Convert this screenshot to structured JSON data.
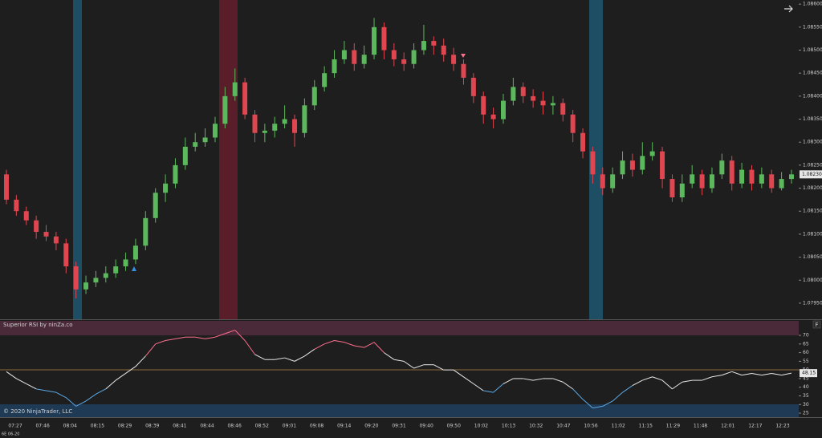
{
  "chart_data": [
    {
      "type": "candlestick",
      "instrument": "6E 06-20",
      "up_color": "#5cb85c",
      "down_color": "#e04650",
      "open": [
        1.0823,
        1.08175,
        1.0815,
        1.0813,
        1.08105,
        1.08095,
        1.0808,
        1.0803,
        1.0798,
        1.07995,
        1.08005,
        1.08015,
        1.0803,
        1.08045,
        1.08075,
        1.08135,
        1.0819,
        1.0821,
        1.0825,
        1.0829,
        1.083,
        1.0831,
        1.0834,
        1.084,
        1.0843,
        1.0836,
        1.0832,
        1.08325,
        1.0834,
        1.0835,
        1.0832,
        1.0838,
        1.0842,
        1.0845,
        1.0848,
        1.085,
        1.0847,
        1.0849,
        1.0855,
        1.085,
        1.0848,
        1.0847,
        1.085,
        1.0852,
        1.0851,
        1.0849,
        1.0847,
        1.0844,
        1.084,
        1.0836,
        1.0835,
        1.0839,
        1.0842,
        1.084,
        1.0839,
        1.0838,
        1.08385,
        1.0836,
        1.0832,
        1.0828,
        1.0823,
        1.082,
        1.0823,
        1.0826,
        1.0824,
        1.0827,
        1.0828,
        1.0822,
        1.0818,
        1.0821,
        1.0823,
        1.082,
        1.0823,
        1.0826,
        1.0821,
        1.0824,
        1.0821,
        1.0823,
        1.082,
        1.0822
      ],
      "high": [
        1.0824,
        1.08185,
        1.0816,
        1.0814,
        1.0812,
        1.08105,
        1.0809,
        1.0804,
        1.0801,
        1.0802,
        1.0803,
        1.08045,
        1.0806,
        1.0809,
        1.0815,
        1.082,
        1.0823,
        1.08265,
        1.0831,
        1.0832,
        1.0833,
        1.08355,
        1.0842,
        1.0846,
        1.0844,
        1.0837,
        1.0834,
        1.08355,
        1.0838,
        1.0836,
        1.08395,
        1.08435,
        1.08465,
        1.085,
        1.0852,
        1.08515,
        1.0851,
        1.0857,
        1.0856,
        1.08515,
        1.08495,
        1.08515,
        1.08555,
        1.0853,
        1.08525,
        1.08505,
        1.0848,
        1.0845,
        1.0841,
        1.08375,
        1.08405,
        1.0844,
        1.0843,
        1.08415,
        1.0841,
        1.084,
        1.08395,
        1.0837,
        1.0833,
        1.0829,
        1.08245,
        1.08245,
        1.0828,
        1.08275,
        1.083,
        1.083,
        1.0829,
        1.0823,
        1.0823,
        1.0825,
        1.0824,
        1.08245,
        1.08275,
        1.0827,
        1.08255,
        1.0825,
        1.08245,
        1.0824,
        1.08235,
        1.0824
      ],
      "low": [
        1.08165,
        1.0814,
        1.0812,
        1.0809,
        1.08085,
        1.08065,
        1.08015,
        1.0796,
        1.0797,
        1.07985,
        1.07995,
        1.08005,
        1.0802,
        1.08035,
        1.08065,
        1.08125,
        1.0817,
        1.082,
        1.0824,
        1.0828,
        1.0829,
        1.083,
        1.0833,
        1.0839,
        1.0835,
        1.083,
        1.083,
        1.0831,
        1.0833,
        1.0829,
        1.0831,
        1.0837,
        1.0841,
        1.0844,
        1.0847,
        1.08455,
        1.0846,
        1.0848,
        1.0848,
        1.08465,
        1.08455,
        1.0846,
        1.0849,
        1.0849,
        1.08475,
        1.08455,
        1.08425,
        1.08385,
        1.0834,
        1.0833,
        1.0834,
        1.0838,
        1.08385,
        1.08375,
        1.0836,
        1.0836,
        1.08345,
        1.083,
        1.08265,
        1.0821,
        1.08185,
        1.0819,
        1.0822,
        1.08225,
        1.0823,
        1.0826,
        1.082,
        1.0817,
        1.0817,
        1.082,
        1.08185,
        1.0819,
        1.0822,
        1.08195,
        1.082,
        1.08195,
        1.082,
        1.0819,
        1.08195,
        1.0821
      ],
      "close": [
        1.08175,
        1.0815,
        1.0813,
        1.08105,
        1.08095,
        1.0808,
        1.0803,
        1.0798,
        1.07995,
        1.08005,
        1.08015,
        1.0803,
        1.08045,
        1.08075,
        1.08135,
        1.0819,
        1.0821,
        1.0825,
        1.0829,
        1.083,
        1.0831,
        1.0834,
        1.084,
        1.0843,
        1.0836,
        1.0832,
        1.08325,
        1.0834,
        1.0835,
        1.0832,
        1.0838,
        1.0842,
        1.0845,
        1.0848,
        1.085,
        1.0847,
        1.0849,
        1.0855,
        1.085,
        1.0848,
        1.0847,
        1.085,
        1.0852,
        1.0851,
        1.0849,
        1.0847,
        1.0844,
        1.084,
        1.0836,
        1.0835,
        1.0839,
        1.0842,
        1.084,
        1.0839,
        1.0838,
        1.08385,
        1.0836,
        1.0832,
        1.0828,
        1.0823,
        1.082,
        1.0823,
        1.0826,
        1.0824,
        1.0827,
        1.0828,
        1.0822,
        1.0818,
        1.0821,
        1.0823,
        1.082,
        1.0823,
        1.0826,
        1.0821,
        1.0824,
        1.0821,
        1.0823,
        1.082,
        1.0822,
        1.0823
      ],
      "ylim": [
        1.07915,
        1.08609
      ],
      "yticks": [
        {
          "value": 1.086,
          "label": "1.08600"
        },
        {
          "value": 1.0855,
          "label": "1.08550"
        },
        {
          "value": 1.085,
          "label": "1.08500"
        },
        {
          "value": 1.0845,
          "label": "1.08450"
        },
        {
          "value": 1.084,
          "label": "1.08400"
        },
        {
          "value": 1.0835,
          "label": "1.08350"
        },
        {
          "value": 1.083,
          "label": "1.08300"
        },
        {
          "value": 1.0825,
          "label": "1.08250"
        },
        {
          "value": 1.082,
          "label": "1.08200"
        },
        {
          "value": 1.0815,
          "label": "1.08150"
        },
        {
          "value": 1.081,
          "label": "1.08100"
        },
        {
          "value": 1.0805,
          "label": "1.08050"
        },
        {
          "value": 1.08,
          "label": "1.08000"
        },
        {
          "value": 1.0795,
          "label": "1.07950"
        }
      ],
      "current_price": {
        "value": 1.0823,
        "label": "1.08230"
      },
      "time_labels": [
        "07:27",
        "07:46",
        "08:04",
        "08:15",
        "08:29",
        "08:39",
        "08:41",
        "08:44",
        "08:46",
        "08:52",
        "09:01",
        "09:08",
        "09:14",
        "09:20",
        "09:31",
        "09:40",
        "09:50",
        "10:02",
        "10:13",
        "10:32",
        "10:47",
        "10:56",
        "11:02",
        "11:15",
        "11:29",
        "11:48",
        "12:01",
        "12:17",
        "12:23"
      ]
    },
    {
      "type": "line",
      "title": "Superior RSI by ninZa.co",
      "copyright": "© 2020 NinjaTrader, LLC",
      "values": [
        49,
        45,
        42,
        39,
        38,
        37,
        34,
        29,
        32,
        36,
        39,
        44,
        48,
        52,
        58,
        65,
        67,
        68,
        69,
        69,
        68,
        69,
        71,
        73,
        67,
        59,
        56,
        56,
        57,
        55,
        58,
        62,
        65,
        67,
        66,
        64,
        63,
        66,
        60,
        56,
        55,
        51,
        53,
        53,
        50,
        50,
        46,
        42,
        38,
        37,
        42,
        45,
        45,
        44,
        45,
        45,
        43,
        39,
        33,
        28,
        29,
        32,
        37,
        41,
        44,
        46,
        44,
        39,
        43,
        44,
        44,
        46,
        47,
        49,
        47,
        48,
        47,
        48,
        47,
        48.15
      ],
      "high_color": "#ff6f8e",
      "mid_color": "#e8e8e8",
      "low_color": "#5aa9e6",
      "ylim": [
        22.7,
        79.3
      ],
      "yticks": [
        25,
        30,
        35,
        40,
        45,
        50,
        55,
        60,
        65,
        70
      ],
      "current_value": 48.15
    }
  ]
}
